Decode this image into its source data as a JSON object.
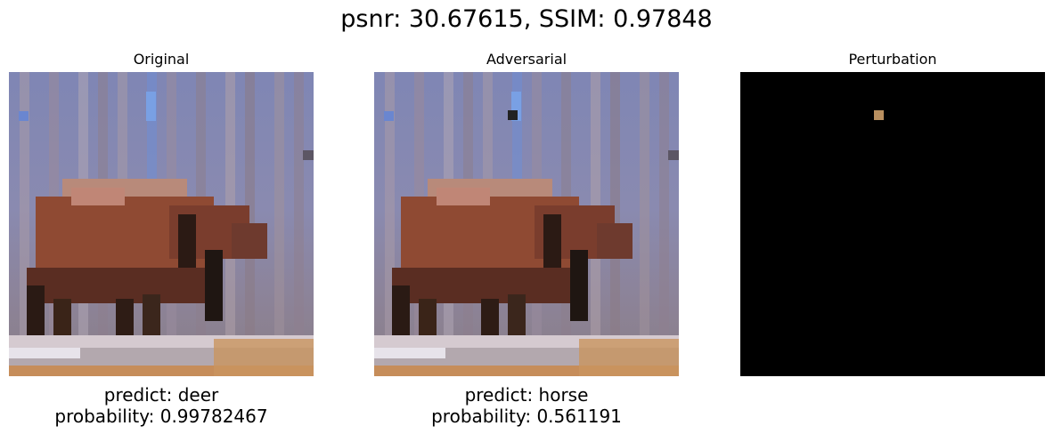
{
  "figure": {
    "title": "psnr: 30.67615, SSIM: 0.97848"
  },
  "panels": [
    {
      "title": "Original",
      "image": "pixelated low-resolution photo of a brown deer grazing in front of bare trees with blue sky, snowy ground",
      "predict": "predict: deer",
      "probability": "probability: 0.99782467"
    },
    {
      "title": "Adversarial",
      "image": "same pixelated deer photo with one altered dark pixel near the top",
      "predict": "predict: horse",
      "probability": "probability: 0.561191"
    },
    {
      "title": "Perturbation",
      "image": "black image with a single tan pixel near the top",
      "perturbation_color": "#b98f5f"
    }
  ],
  "colors": {
    "adversarial_pixel": "#222222",
    "perturbation_background": "#000000"
  }
}
